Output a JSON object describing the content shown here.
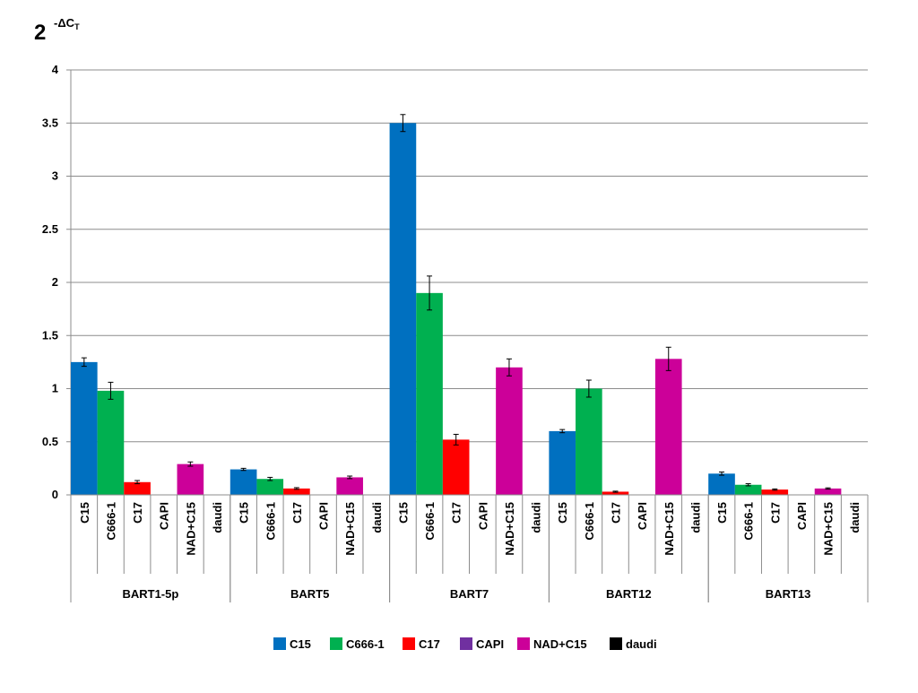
{
  "chart_data": {
    "type": "bar",
    "title": {
      "base": "2",
      "exponent_prefix": "-ΔC",
      "exponent_subscript": "T"
    },
    "ylim": [
      0,
      4
    ],
    "yticks": [
      {
        "value": 0,
        "label": "0"
      },
      {
        "value": 0.5,
        "label": "0.5"
      },
      {
        "value": 1,
        "label": "1"
      },
      {
        "value": 1.5,
        "label": "1.5"
      },
      {
        "value": 2,
        "label": "2"
      },
      {
        "value": 2.5,
        "label": "2.5"
      },
      {
        "value": 3,
        "label": "3"
      },
      {
        "value": 3.5,
        "label": "3.5"
      },
      {
        "value": 4,
        "label": "4"
      }
    ],
    "grid": true,
    "legend_position": "bottom",
    "series_names": [
      "C15",
      "C666-1",
      "C17",
      "CAPI",
      "NAD+C15",
      "daudi"
    ],
    "series_colors": [
      "#0070c0",
      "#00b050",
      "#ff0000",
      "#7030a0",
      "#cc0099",
      "#000000"
    ],
    "groups": [
      {
        "name": "BART1-5p",
        "values": [
          1.25,
          0.98,
          0.12,
          0,
          0.29,
          0
        ],
        "errors": [
          0.04,
          0.08,
          0.015,
          0,
          0.02,
          0
        ]
      },
      {
        "name": "BART5",
        "values": [
          0.24,
          0.15,
          0.06,
          0,
          0.165,
          0
        ],
        "errors": [
          0.01,
          0.015,
          0.008,
          0,
          0.012,
          0
        ]
      },
      {
        "name": "BART7",
        "values": [
          3.5,
          1.9,
          0.52,
          0,
          1.2,
          0
        ],
        "errors": [
          0.08,
          0.16,
          0.05,
          0,
          0.08,
          0
        ]
      },
      {
        "name": "BART12",
        "values": [
          0.6,
          1.0,
          0.03,
          0,
          1.28,
          0
        ],
        "errors": [
          0.015,
          0.08,
          0.005,
          0,
          0.11,
          0
        ]
      },
      {
        "name": "BART13",
        "values": [
          0.2,
          0.095,
          0.05,
          0,
          0.06,
          0
        ],
        "errors": [
          0.015,
          0.01,
          0.006,
          0,
          0.006,
          0
        ]
      }
    ]
  }
}
